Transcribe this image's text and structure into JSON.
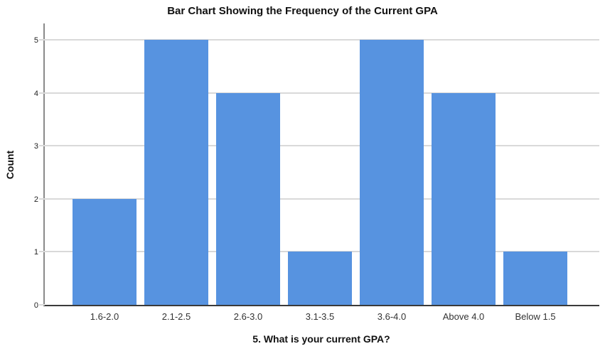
{
  "chart_data": {
    "type": "bar",
    "title": "Bar Chart Showing the Frequency of the Current GPA",
    "xlabel": "5. What is your current GPA?",
    "ylabel": "Count",
    "categories": [
      "1.6-2.0",
      "2.1-2.5",
      "2.6-3.0",
      "3.1-3.5",
      "3.6-4.0",
      "Above 4.0",
      "Below 1.5"
    ],
    "values": [
      2,
      5,
      4,
      1,
      5,
      4,
      1
    ],
    "ylim": [
      0,
      5
    ],
    "yticks": [
      0,
      1,
      2,
      3,
      4,
      5
    ],
    "grid": "horizontal-only",
    "legend": "none",
    "colors": {
      "bar": "#5793e0",
      "gridline": "#d9d9d9",
      "y_axis_line": "#8a8a8a",
      "x_axis_line": "#3a3a3a",
      "background": "#ffffff"
    }
  }
}
